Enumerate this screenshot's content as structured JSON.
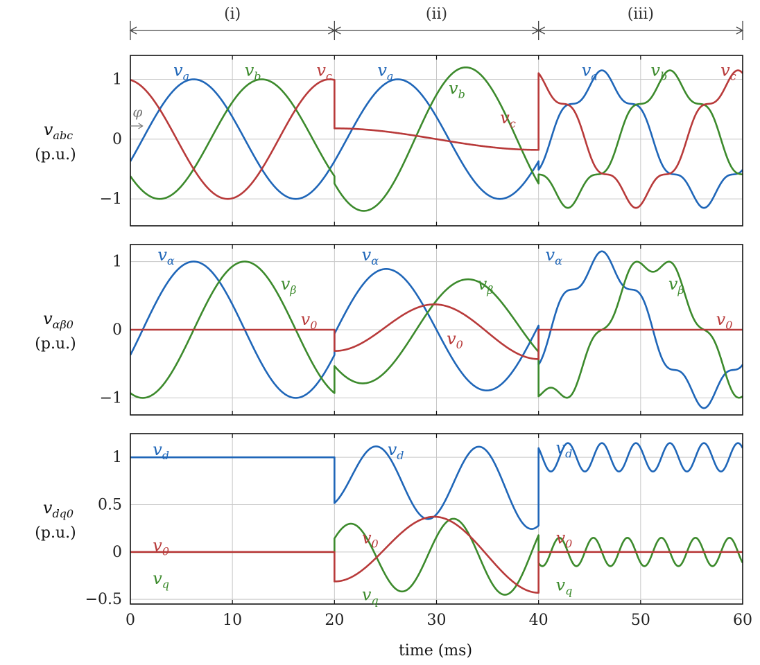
{
  "chart_data": {
    "type": "line",
    "x_label": "time (ms)",
    "x_range": [
      0,
      60
    ],
    "x_ticks": [
      "0",
      "10",
      "20",
      "30",
      "40",
      "60"
    ],
    "x_ticks_full": [
      "0",
      "10",
      "20",
      "30",
      "40",
      "50",
      "60"
    ],
    "grid": true,
    "colors": {
      "a": "#1f66b8",
      "b": "#3c8a2c",
      "c": "#b83a3a"
    },
    "regions": [
      {
        "label": "(i)",
        "x_start": 0,
        "x_end": 20
      },
      {
        "label": "(ii)",
        "x_start": 20,
        "x_end": 40
      },
      {
        "label": "(iii)",
        "x_start": 40,
        "x_end": 60
      }
    ],
    "phase_annotation": "φ",
    "panels": [
      {
        "id": "abc",
        "y_label_main": "v",
        "y_label_sub": "abc",
        "y_unit": "(p.u.)",
        "y_range": [
          -1.45,
          1.4
        ],
        "y_ticks": [
          {
            "value": 1,
            "label": "1"
          },
          {
            "value": 0,
            "label": "0"
          },
          {
            "value": -1,
            "label": "−1"
          }
        ],
        "series": [
          {
            "name": "v_a",
            "main": "v",
            "sub": "a",
            "color": "#1f66b8"
          },
          {
            "name": "v_b",
            "main": "v",
            "sub": "b",
            "color": "#3c8a2c"
          },
          {
            "name": "v_c",
            "main": "v",
            "sub": "c",
            "color": "#b83a3a"
          }
        ],
        "series_labels": [
          {
            "main": "v",
            "sub": "a",
            "color": "#1f66b8",
            "x": 5.0,
            "y": 1.15
          },
          {
            "main": "v",
            "sub": "b",
            "color": "#3c8a2c",
            "x": 12.0,
            "y": 1.15
          },
          {
            "main": "v",
            "sub": "c",
            "color": "#b83a3a",
            "x": 19.0,
            "y": 1.15
          },
          {
            "main": "v",
            "sub": "a",
            "color": "#1f66b8",
            "x": 25.0,
            "y": 1.15
          },
          {
            "main": "v",
            "sub": "b",
            "color": "#3c8a2c",
            "x": 32.0,
            "y": 0.85
          },
          {
            "main": "v",
            "sub": "c",
            "color": "#b83a3a",
            "x": 37.0,
            "y": 0.36
          },
          {
            "main": "v",
            "sub": "a",
            "color": "#1f66b8",
            "x": 45.0,
            "y": 1.15
          },
          {
            "main": "v",
            "sub": "b",
            "color": "#3c8a2c",
            "x": 51.8,
            "y": 1.15
          },
          {
            "main": "v",
            "sub": "c",
            "color": "#b83a3a",
            "x": 58.6,
            "y": 1.15
          }
        ]
      },
      {
        "id": "ab0",
        "y_label_main": "v",
        "y_label_sub": "αβ0",
        "y_unit": "(p.u.)",
        "y_range": [
          -1.25,
          1.25
        ],
        "y_ticks": [
          {
            "value": 1,
            "label": "1"
          },
          {
            "value": 0,
            "label": "0"
          },
          {
            "value": -1,
            "label": "−1"
          }
        ],
        "series": [
          {
            "name": "v_α",
            "main": "v",
            "sub": "α",
            "color": "#1f66b8"
          },
          {
            "name": "v_β",
            "main": "v",
            "sub": "β",
            "color": "#3c8a2c"
          },
          {
            "name": "v_0",
            "main": "v",
            "sub": "0",
            "color": "#b83a3a"
          }
        ],
        "series_labels": [
          {
            "main": "v",
            "sub": "α",
            "color": "#1f66b8",
            "x": 3.5,
            "y": 1.1
          },
          {
            "main": "v",
            "sub": "β",
            "color": "#3c8a2c",
            "x": 15.5,
            "y": 0.67
          },
          {
            "main": "v",
            "sub": "0",
            "color": "#b83a3a",
            "x": 17.5,
            "y": 0.15
          },
          {
            "main": "v",
            "sub": "α",
            "color": "#1f66b8",
            "x": 23.5,
            "y": 1.1
          },
          {
            "main": "v",
            "sub": "β",
            "color": "#3c8a2c",
            "x": 34.8,
            "y": 0.67
          },
          {
            "main": "v",
            "sub": "0",
            "color": "#b83a3a",
            "x": 31.8,
            "y": -0.13
          },
          {
            "main": "v",
            "sub": "α",
            "color": "#1f66b8",
            "x": 41.5,
            "y": 1.1
          },
          {
            "main": "v",
            "sub": "β",
            "color": "#3c8a2c",
            "x": 53.5,
            "y": 0.67
          },
          {
            "main": "v",
            "sub": "0",
            "color": "#b83a3a",
            "x": 58.2,
            "y": 0.15
          }
        ]
      },
      {
        "id": "dq0",
        "y_label_main": "v",
        "y_label_sub": "dq0",
        "y_unit": "(p.u.)",
        "y_range": [
          -0.55,
          1.25
        ],
        "y_ticks": [
          {
            "value": 1,
            "label": "1"
          },
          {
            "value": 0.5,
            "label": "0.5"
          },
          {
            "value": 0,
            "label": "0"
          },
          {
            "value": -0.5,
            "label": "−0.5"
          }
        ],
        "series": [
          {
            "name": "v_d",
            "main": "v",
            "sub": "d",
            "color": "#1f66b8"
          },
          {
            "name": "v_q",
            "main": "v",
            "sub": "q",
            "color": "#3c8a2c"
          },
          {
            "name": "v_0",
            "main": "v",
            "sub": "0",
            "color": "#b83a3a"
          }
        ],
        "series_labels": [
          {
            "main": "v",
            "sub": "d",
            "color": "#1f66b8",
            "x": 3.0,
            "y": 1.08
          },
          {
            "main": "v",
            "sub": "0",
            "color": "#b83a3a",
            "x": 3.0,
            "y": 0.07
          },
          {
            "main": "v",
            "sub": "q",
            "color": "#3c8a2c",
            "x": 3.0,
            "y": -0.28
          },
          {
            "main": "v",
            "sub": "d",
            "color": "#1f66b8",
            "x": 26.0,
            "y": 1.08
          },
          {
            "main": "v",
            "sub": "0",
            "color": "#b83a3a",
            "x": 23.5,
            "y": 0.15
          },
          {
            "main": "v",
            "sub": "q",
            "color": "#3c8a2c",
            "x": 23.5,
            "y": -0.45
          },
          {
            "main": "v",
            "sub": "d",
            "color": "#1f66b8",
            "x": 42.5,
            "y": 1.1
          },
          {
            "main": "v",
            "sub": "0",
            "color": "#b83a3a",
            "x": 42.5,
            "y": 0.15
          },
          {
            "main": "v",
            "sub": "q",
            "color": "#3c8a2c",
            "x": 42.5,
            "y": -0.35
          }
        ]
      }
    ]
  }
}
